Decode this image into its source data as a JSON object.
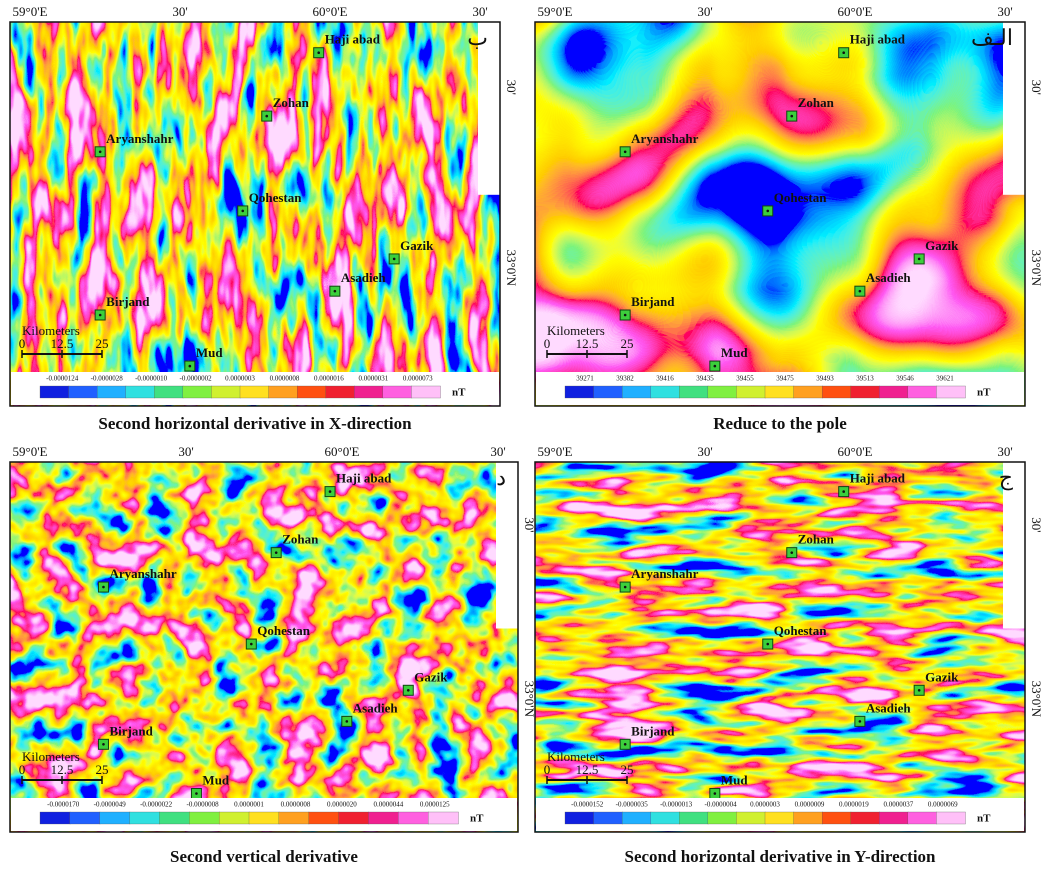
{
  "panels": [
    {
      "letter": "ب",
      "caption": "Second horizontal derivative in X-direction",
      "top_labels": [
        "59°0'E",
        "30'",
        "60°0'E",
        "30'"
      ],
      "right_labels": [
        "30'",
        "33°0'N"
      ],
      "towns": [
        "Haji abad",
        "Zohan",
        "Aryanshahr",
        "Qohestan",
        "Gazik",
        "Asadieh",
        "Birjand",
        "Mud"
      ],
      "scale": {
        "title": "Kilometers",
        "ticks": [
          "0",
          "12.5",
          "25"
        ]
      },
      "colorbar": [
        "-0.0000124",
        "-0.0000028",
        "-0.0000010",
        "-0.0000002",
        "0.0000003",
        "0.0000008",
        "0.0000016",
        "0.0000031",
        "0.0000073"
      ],
      "unit": "nT"
    },
    {
      "letter": "الـف",
      "caption": "Reduce to the pole",
      "top_labels": [
        "59°0'E",
        "30'",
        "60°0'E",
        "30'"
      ],
      "right_labels": [
        "30'",
        "33°0'N"
      ],
      "towns": [
        "Haji abad",
        "Zohan",
        "Aryanshahr",
        "Qohestan",
        "Gazik",
        "Asadieh",
        "Birjand",
        "Mud"
      ],
      "scale": {
        "title": "Kilometers",
        "ticks": [
          "0",
          "12.5",
          "25"
        ]
      },
      "colorbar": [
        "39271",
        "39382",
        "39416",
        "39435",
        "39455",
        "39475",
        "39493",
        "39513",
        "39546",
        "39621"
      ],
      "unit": "nT"
    },
    {
      "letter": "د",
      "caption": "Second vertical derivative",
      "top_labels": [
        "59°0'E",
        "30'",
        "60°0'E",
        "30'"
      ],
      "right_labels": [
        "30'",
        "33°0'N"
      ],
      "towns": [
        "Haji abad",
        "Zohan",
        "Aryanshahr",
        "Qohestan",
        "Gazik",
        "Asadieh",
        "Birjand",
        "Mud"
      ],
      "scale": {
        "title": "Kilometers",
        "ticks": [
          "0",
          "12.5",
          "25"
        ]
      },
      "colorbar": [
        "-0.0000170",
        "-0.0000049",
        "-0.0000022",
        "-0.0000008",
        "0.0000001",
        "0.0000008",
        "0.0000020",
        "0.0000044",
        "0.0000125"
      ],
      "unit": "nT"
    },
    {
      "letter": "ج",
      "caption": "Second horizontal derivative in Y-direction",
      "top_labels": [
        "59°0'E",
        "30'",
        "60°0'E",
        "30'"
      ],
      "right_labels": [
        "30'",
        "33°0'N"
      ],
      "towns": [
        "Haji abad",
        "Zohan",
        "Aryanshahr",
        "Qohestan",
        "Gazik",
        "Asadieh",
        "Birjand",
        "Mud"
      ],
      "scale": {
        "title": "Kilometers",
        "ticks": [
          "0",
          "12.5",
          "25"
        ]
      },
      "colorbar": [
        "-0.0000152",
        "-0.0000035",
        "-0.0000013",
        "-0.0000004",
        "0.0000003",
        "0.0000009",
        "0.0000019",
        "0.0000037",
        "0.0000069"
      ],
      "unit": "nT"
    }
  ]
}
